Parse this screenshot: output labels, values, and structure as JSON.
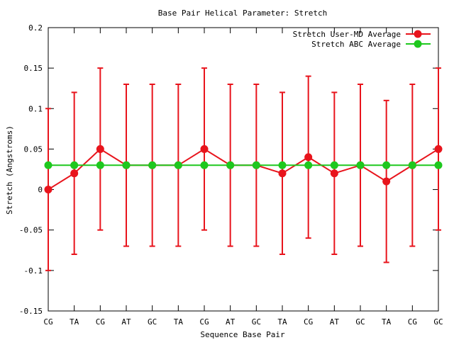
{
  "chart_data": {
    "type": "line",
    "title": "Base Pair Helical Parameter: Stretch",
    "xlabel": "Sequence Base Pair",
    "ylabel": "Stretch (Angstroms)",
    "categories": [
      "CG",
      "TA",
      "CG",
      "AT",
      "GC",
      "TA",
      "CG",
      "AT",
      "GC",
      "TA",
      "CG",
      "AT",
      "GC",
      "TA",
      "CG",
      "GC"
    ],
    "ylim": [
      -0.15,
      0.2
    ],
    "yticks": [
      -0.15,
      -0.1,
      -0.05,
      0,
      0.05,
      0.1,
      0.15,
      0.2
    ],
    "ytick_labels": [
      "-0.15",
      "-0.1",
      "-0.05",
      "0",
      "0.05",
      "0.1",
      "0.15",
      "0.2"
    ],
    "legend_position": "top-right",
    "grid": false,
    "series": [
      {
        "name": "Stretch User-MD Average",
        "color": "#e8141c",
        "values": [
          0.0,
          0.02,
          0.05,
          0.03,
          0.03,
          0.03,
          0.05,
          0.03,
          0.03,
          0.02,
          0.04,
          0.02,
          0.03,
          0.01,
          0.03,
          0.05
        ],
        "error_low": [
          -0.1,
          -0.08,
          -0.05,
          -0.07,
          -0.07,
          -0.07,
          -0.05,
          -0.07,
          -0.07,
          -0.08,
          -0.06,
          -0.08,
          -0.07,
          -0.09,
          -0.07,
          -0.05
        ],
        "error_high": [
          0.1,
          0.12,
          0.15,
          0.13,
          0.13,
          0.13,
          0.15,
          0.13,
          0.13,
          0.12,
          0.14,
          0.12,
          0.13,
          0.11,
          0.13,
          0.15
        ]
      },
      {
        "name": "Stretch ABC Average",
        "color": "#1ec81e",
        "values": [
          0.03,
          0.03,
          0.03,
          0.03,
          0.03,
          0.03,
          0.03,
          0.03,
          0.03,
          0.03,
          0.03,
          0.03,
          0.03,
          0.03,
          0.03,
          0.03
        ]
      }
    ]
  }
}
